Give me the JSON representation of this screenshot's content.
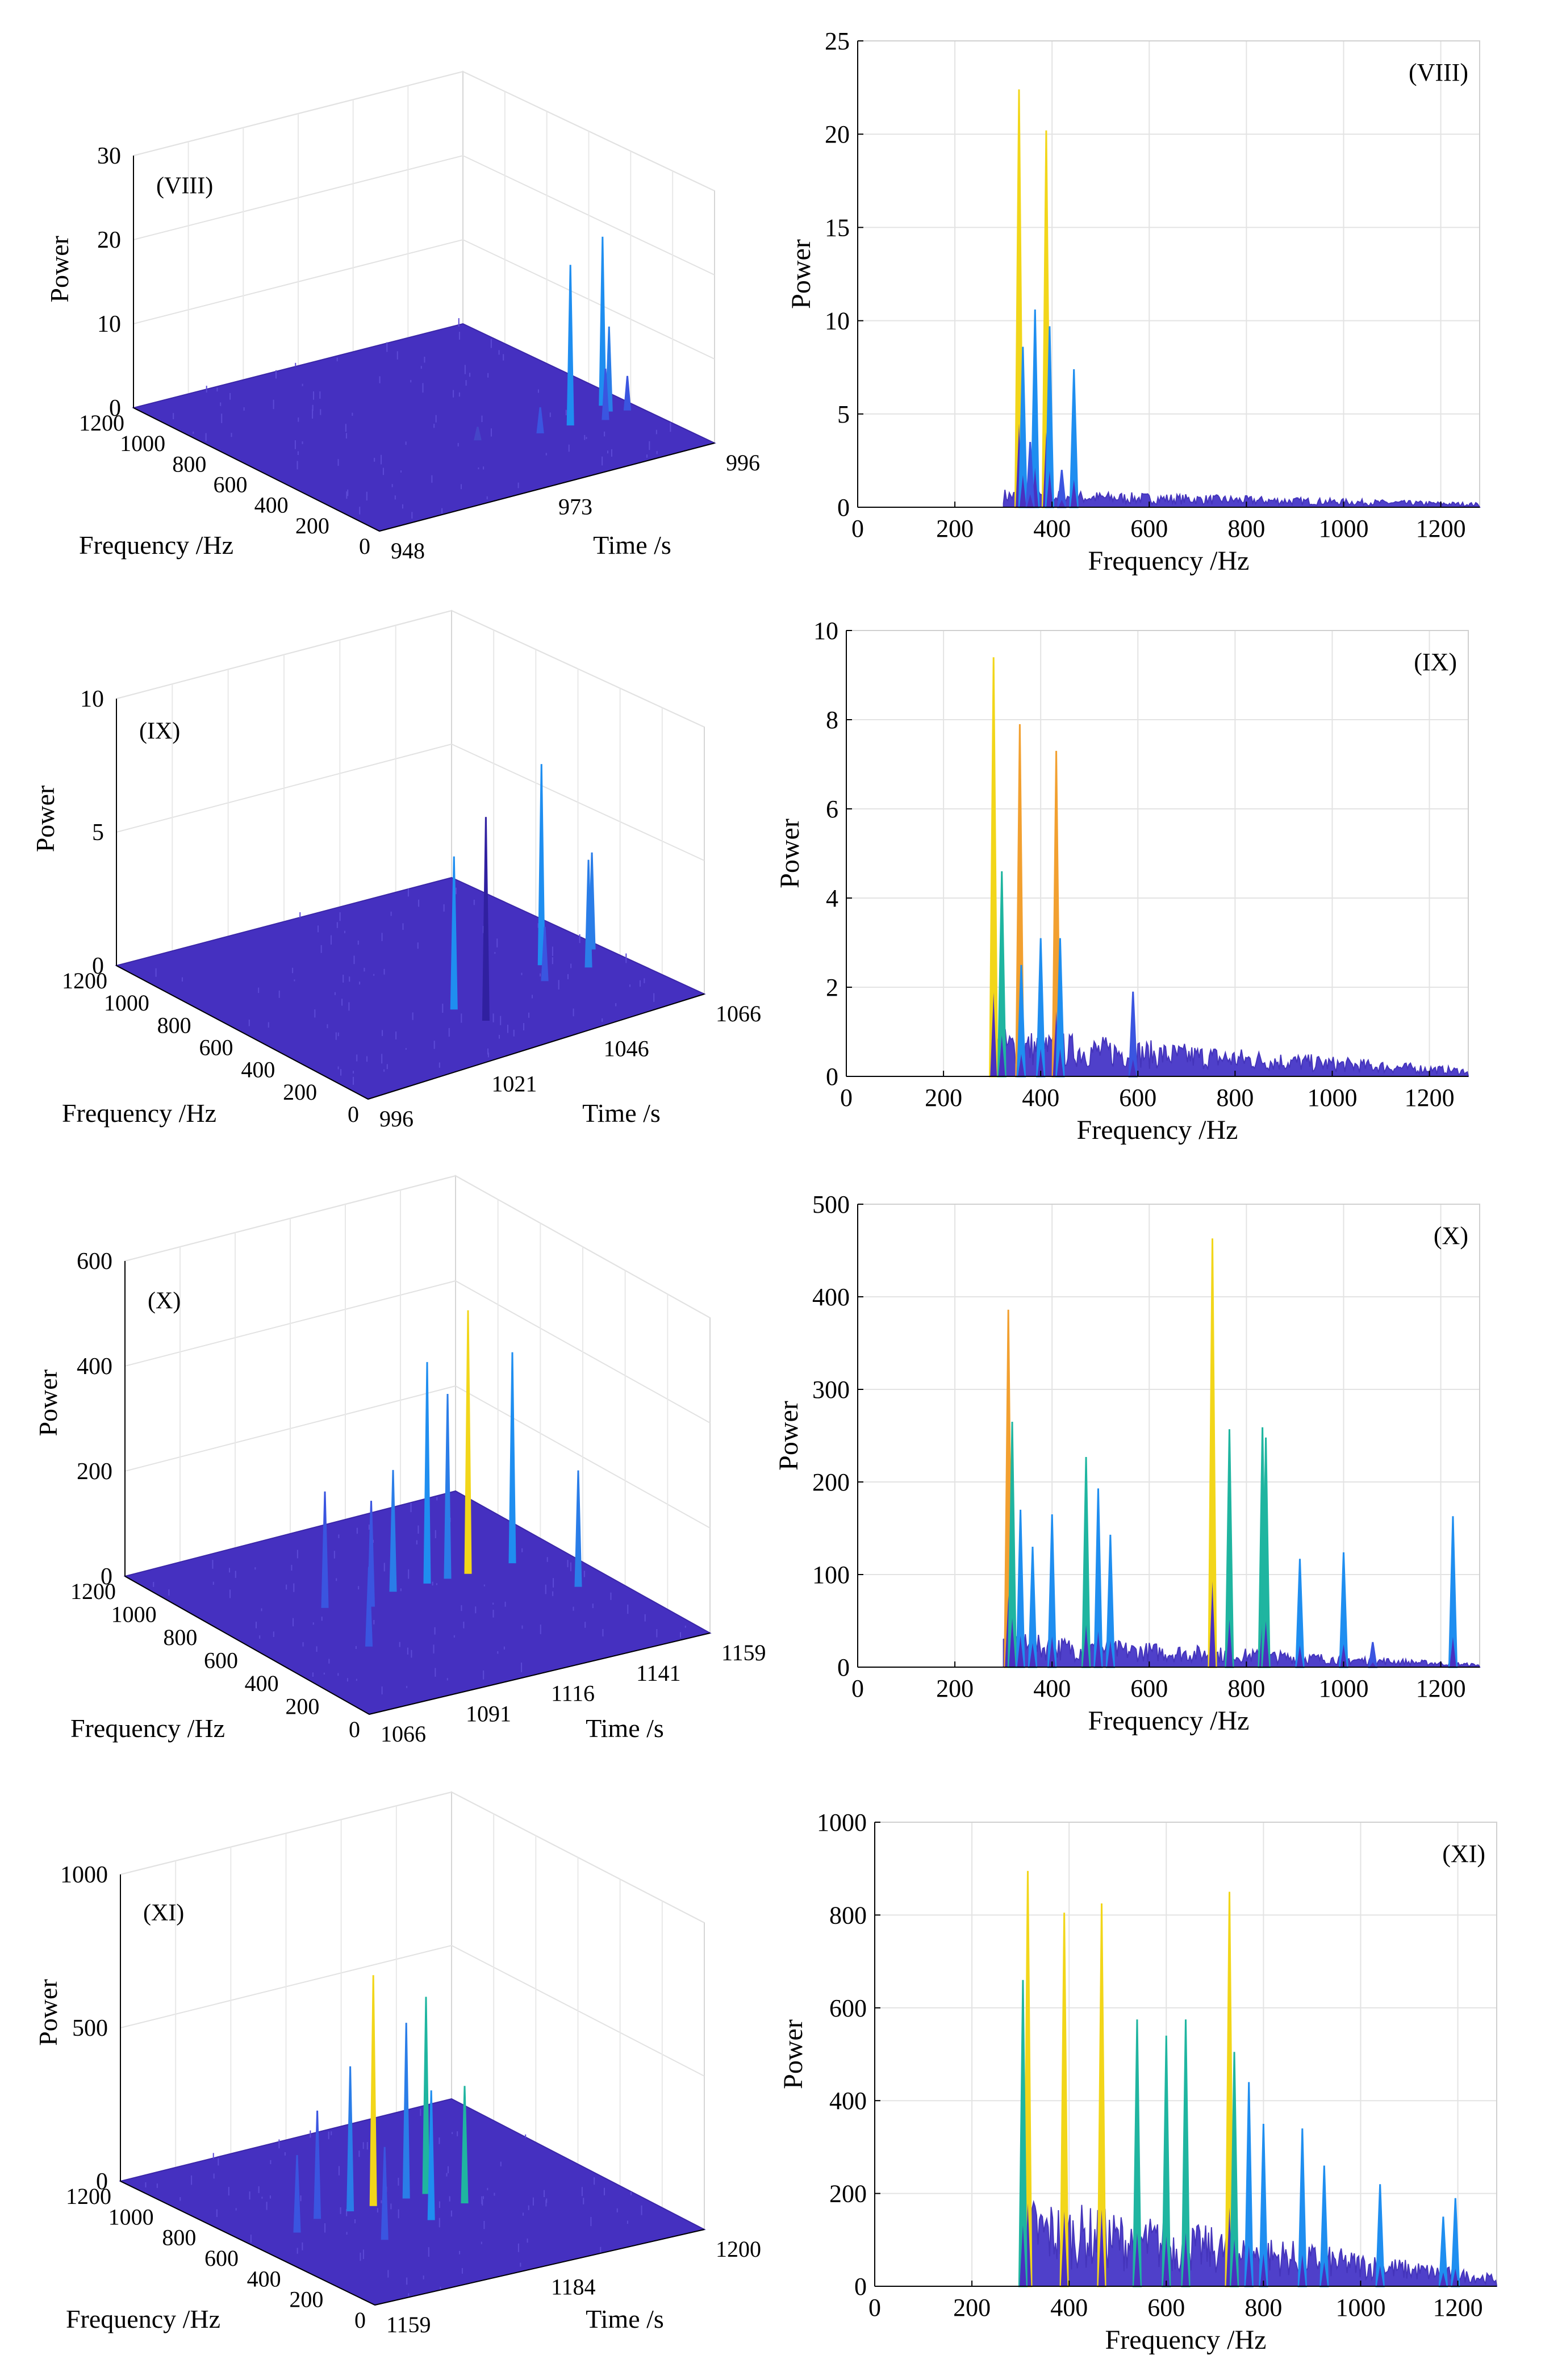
{
  "chart_data": [
    {
      "id": "p1-3d",
      "type": "3d-waterfall",
      "panel_label": "(VIII)",
      "xlabel": "Frequency /Hz",
      "ylabel": "Time /s",
      "zlabel": "Power",
      "z_ticks": [
        "0",
        "10",
        "20",
        "30"
      ],
      "z_range": [
        0,
        30
      ],
      "freq_ticks": [
        "1200",
        "1000",
        "800",
        "600",
        "400",
        "200",
        "0"
      ],
      "time_ticks": [
        "948",
        "973",
        "996"
      ],
      "peaks": [
        {
          "t": 0.79,
          "f": 0.3,
          "value": 19,
          "color": "#1f8ef0"
        },
        {
          "t": 0.92,
          "f": 0.32,
          "value": 10,
          "color": "#2a7de8"
        },
        {
          "t": 0.93,
          "f": 0.36,
          "value": 20,
          "color": "#1f8ef0"
        },
        {
          "t": 0.88,
          "f": 0.28,
          "value": 6,
          "color": "#3a55e0"
        },
        {
          "t": 0.96,
          "f": 0.3,
          "value": 4,
          "color": "#3a55e0"
        },
        {
          "t": 0.7,
          "f": 0.3,
          "value": 3,
          "color": "#3a55e0"
        },
        {
          "t": 0.55,
          "f": 0.35,
          "value": 1.5,
          "color": "#4545c8"
        }
      ]
    },
    {
      "id": "p1-2d",
      "type": "line",
      "panel_label": "(VIII)",
      "xlabel": "Frequency /Hz",
      "ylabel": "Power",
      "xlim": [
        0,
        1280
      ],
      "ylim": [
        0,
        25
      ],
      "x_ticks": [
        "0",
        "200",
        "400",
        "600",
        "800",
        "1000",
        "1200"
      ],
      "y_ticks": [
        "0",
        "5",
        "10",
        "15",
        "20",
        "25"
      ],
      "noise": {
        "start": 300,
        "level": 0.8,
        "decay_to": 0.2
      },
      "peaks": [
        {
          "x": 332,
          "y": 22.4,
          "color": "#f2d61a"
        },
        {
          "x": 388,
          "y": 20.2,
          "color": "#f2d61a"
        },
        {
          "x": 365,
          "y": 10.6,
          "color": "#1f8ef0"
        },
        {
          "x": 340,
          "y": 8.6,
          "color": "#1f8ef0"
        },
        {
          "x": 445,
          "y": 7.4,
          "color": "#1f8ef0"
        },
        {
          "x": 395,
          "y": 9.7,
          "color": "#1f8ef0"
        },
        {
          "x": 355,
          "y": 3.5,
          "color": "#3a55e0"
        },
        {
          "x": 420,
          "y": 2.0,
          "color": "#3a55e0"
        }
      ]
    },
    {
      "id": "p2-3d",
      "type": "3d-waterfall",
      "panel_label": "(IX)",
      "xlabel": "Frequency /Hz",
      "ylabel": "Time /s",
      "zlabel": "Power",
      "z_ticks": [
        "0",
        "5",
        "10"
      ],
      "z_range": [
        0,
        10
      ],
      "freq_ticks": [
        "1200",
        "1000",
        "800",
        "600",
        "400",
        "200",
        "0"
      ],
      "time_ticks": [
        "996",
        "1021",
        "1046",
        "1066"
      ],
      "peaks": [
        {
          "t": 0.48,
          "f": 0.3,
          "value": 5.7,
          "color": "#1f8ef0"
        },
        {
          "t": 0.5,
          "f": 0.2,
          "value": 7.6,
          "color": "#3020a0"
        },
        {
          "t": 0.8,
          "f": 0.38,
          "value": 7.5,
          "color": "#1f8ef0"
        },
        {
          "t": 0.88,
          "f": 0.3,
          "value": 4.0,
          "color": "#2a7de8"
        },
        {
          "t": 0.95,
          "f": 0.38,
          "value": 3.6,
          "color": "#2a7de8"
        },
        {
          "t": 0.75,
          "f": 0.3,
          "value": 2.0,
          "color": "#3a55e0"
        }
      ]
    },
    {
      "id": "p2-2d",
      "type": "line",
      "panel_label": "(IX)",
      "xlabel": "Frequency /Hz",
      "ylabel": "Power",
      "xlim": [
        0,
        1280
      ],
      "ylim": [
        0,
        10
      ],
      "x_ticks": [
        "0",
        "200",
        "400",
        "600",
        "800",
        "1000",
        "1200"
      ],
      "y_ticks": [
        "0",
        "2",
        "4",
        "6",
        "8",
        "10"
      ],
      "noise": {
        "start": 300,
        "level": 0.9,
        "decay_to": 0.15
      },
      "peaks": [
        {
          "x": 303,
          "y": 9.4,
          "color": "#f2d61a"
        },
        {
          "x": 357,
          "y": 7.9,
          "color": "#f2a030"
        },
        {
          "x": 432,
          "y": 7.3,
          "color": "#f2a030"
        },
        {
          "x": 320,
          "y": 4.6,
          "color": "#1fb5a0"
        },
        {
          "x": 400,
          "y": 3.1,
          "color": "#1f8ef0"
        },
        {
          "x": 440,
          "y": 3.1,
          "color": "#1f8ef0"
        },
        {
          "x": 590,
          "y": 1.9,
          "color": "#3a55e0"
        },
        {
          "x": 360,
          "y": 2.5,
          "color": "#1f8ef0"
        }
      ]
    },
    {
      "id": "p3-3d",
      "type": "3d-waterfall",
      "panel_label": "(X)",
      "xlabel": "Frequency /Hz",
      "ylabel": "Time /s",
      "zlabel": "Power",
      "z_ticks": [
        "0",
        "200",
        "400",
        "600"
      ],
      "z_range": [
        0,
        600
      ],
      "freq_ticks": [
        "1200",
        "1000",
        "800",
        "600",
        "400",
        "200",
        "0"
      ],
      "time_ticks": [
        "1066",
        "1091",
        "1116",
        "1141",
        "1159"
      ],
      "peaks": [
        {
          "t": 0.6,
          "f": 0.6,
          "value": 420,
          "color": "#1f8ef0"
        },
        {
          "t": 0.72,
          "f": 0.6,
          "value": 500,
          "color": "#f2d61a"
        },
        {
          "t": 0.85,
          "f": 0.6,
          "value": 400,
          "color": "#1f8ef0"
        },
        {
          "t": 0.66,
          "f": 0.6,
          "value": 350,
          "color": "#2a7de8"
        },
        {
          "t": 0.5,
          "f": 0.6,
          "value": 230,
          "color": "#2a7de8"
        },
        {
          "t": 0.9,
          "f": 0.4,
          "value": 220,
          "color": "#2a7de8"
        },
        {
          "t": 0.4,
          "f": 0.55,
          "value": 200,
          "color": "#3a55e0"
        },
        {
          "t": 0.3,
          "f": 0.6,
          "value": 220,
          "color": "#3a55e0"
        },
        {
          "t": 0.25,
          "f": 0.35,
          "value": 150,
          "color": "#3a55e0"
        }
      ]
    },
    {
      "id": "p3-2d",
      "type": "line",
      "panel_label": "(X)",
      "xlabel": "Frequency /Hz",
      "ylabel": "Power",
      "xlim": [
        0,
        1280
      ],
      "ylim": [
        0,
        500
      ],
      "x_ticks": [
        "0",
        "200",
        "400",
        "600",
        "800",
        "1000",
        "1200"
      ],
      "y_ticks": [
        "0",
        "100",
        "200",
        "300",
        "400",
        "500"
      ],
      "noise": {
        "start": 300,
        "level": 30,
        "decay_to": 3
      },
      "peaks": [
        {
          "x": 310,
          "y": 386,
          "color": "#f2a030"
        },
        {
          "x": 318,
          "y": 265,
          "color": "#1fb5a0"
        },
        {
          "x": 335,
          "y": 170,
          "color": "#1f8ef0"
        },
        {
          "x": 360,
          "y": 130,
          "color": "#1f8ef0"
        },
        {
          "x": 400,
          "y": 165,
          "color": "#1f8ef0"
        },
        {
          "x": 470,
          "y": 227,
          "color": "#1fb5a0"
        },
        {
          "x": 495,
          "y": 193,
          "color": "#1f8ef0"
        },
        {
          "x": 520,
          "y": 143,
          "color": "#1f8ef0"
        },
        {
          "x": 730,
          "y": 463,
          "color": "#f2d61a"
        },
        {
          "x": 765,
          "y": 257,
          "color": "#1fb5a0"
        },
        {
          "x": 833,
          "y": 259,
          "color": "#1fb5a0"
        },
        {
          "x": 840,
          "y": 248,
          "color": "#1fb5a0"
        },
        {
          "x": 910,
          "y": 117,
          "color": "#1f8ef0"
        },
        {
          "x": 1000,
          "y": 124,
          "color": "#1f8ef0"
        },
        {
          "x": 1060,
          "y": 27,
          "color": "#3a55e0"
        },
        {
          "x": 1225,
          "y": 163,
          "color": "#1f8ef0"
        }
      ]
    },
    {
      "id": "p4-3d",
      "type": "3d-waterfall",
      "panel_label": "(XI)",
      "xlabel": "Frequency /Hz",
      "ylabel": "Time /s",
      "zlabel": "Power",
      "z_ticks": [
        "0",
        "500",
        "1000"
      ],
      "z_range": [
        0,
        1000
      ],
      "freq_ticks": [
        "1200",
        "1000",
        "800",
        "600",
        "400",
        "200",
        "0"
      ],
      "time_ticks": [
        "1159",
        "1184",
        "1200"
      ],
      "peaks": [
        {
          "t": 0.42,
          "f": 0.55,
          "value": 750,
          "color": "#f2d61a"
        },
        {
          "t": 0.52,
          "f": 0.55,
          "value": 570,
          "color": "#2a7de8"
        },
        {
          "t": 0.58,
          "f": 0.55,
          "value": 640,
          "color": "#1fb5a0"
        },
        {
          "t": 0.35,
          "f": 0.55,
          "value": 470,
          "color": "#2a7de8"
        },
        {
          "t": 0.25,
          "f": 0.55,
          "value": 350,
          "color": "#3a55e0"
        },
        {
          "t": 0.48,
          "f": 0.4,
          "value": 420,
          "color": "#1f8ef0"
        },
        {
          "t": 0.3,
          "f": 0.35,
          "value": 300,
          "color": "#3a55e0"
        },
        {
          "t": 0.15,
          "f": 0.5,
          "value": 250,
          "color": "#3a55e0"
        },
        {
          "t": 0.62,
          "f": 0.45,
          "value": 380,
          "color": "#1fb5a0"
        }
      ]
    },
    {
      "id": "p4-2d",
      "type": "line",
      "panel_label": "(XI)",
      "xlabel": "Frequency /Hz",
      "ylabel": "Power",
      "xlim": [
        0,
        1280
      ],
      "ylim": [
        0,
        1000
      ],
      "x_ticks": [
        "0",
        "200",
        "400",
        "600",
        "800",
        "1000",
        "1200"
      ],
      "y_ticks": [
        "0",
        "200",
        "400",
        "600",
        "800",
        "1000"
      ],
      "noise": {
        "start": 300,
        "level": 160,
        "decay_to": 20
      },
      "peaks": [
        {
          "x": 315,
          "y": 895,
          "color": "#f2d61a"
        },
        {
          "x": 305,
          "y": 660,
          "color": "#1fb5a0"
        },
        {
          "x": 390,
          "y": 805,
          "color": "#f2d61a"
        },
        {
          "x": 467,
          "y": 825,
          "color": "#f2d61a"
        },
        {
          "x": 730,
          "y": 850,
          "color": "#f2d61a"
        },
        {
          "x": 540,
          "y": 575,
          "color": "#1fb5a0"
        },
        {
          "x": 600,
          "y": 540,
          "color": "#1fb5a0"
        },
        {
          "x": 640,
          "y": 575,
          "color": "#1fb5a0"
        },
        {
          "x": 740,
          "y": 505,
          "color": "#1fb5a0"
        },
        {
          "x": 770,
          "y": 440,
          "color": "#1f8ef0"
        },
        {
          "x": 800,
          "y": 350,
          "color": "#1f8ef0"
        },
        {
          "x": 880,
          "y": 340,
          "color": "#1f8ef0"
        },
        {
          "x": 925,
          "y": 260,
          "color": "#1f8ef0"
        },
        {
          "x": 1040,
          "y": 220,
          "color": "#1f8ef0"
        },
        {
          "x": 1195,
          "y": 190,
          "color": "#1f8ef0"
        },
        {
          "x": 1170,
          "y": 150,
          "color": "#1f8ef0"
        }
      ]
    }
  ]
}
